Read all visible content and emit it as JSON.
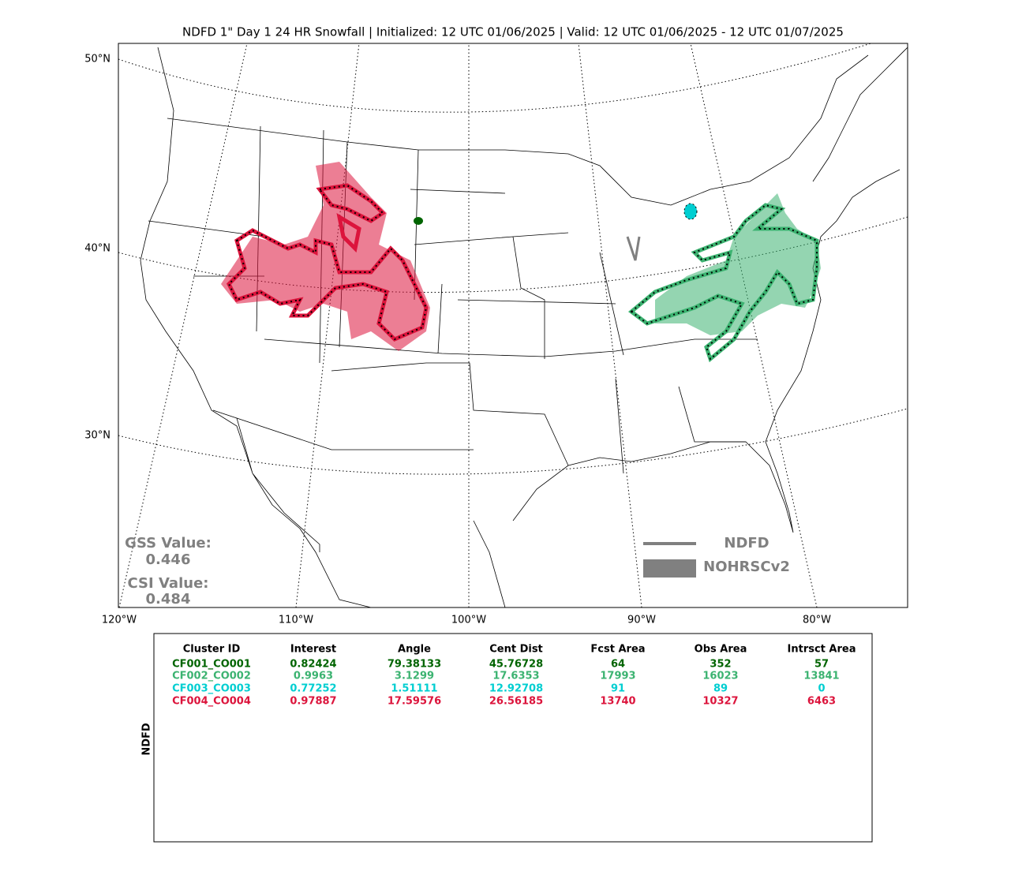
{
  "title": "NDFD 1\" Day 1 24 HR Snowfall | Initialized: 12 UTC 01/06/2025 | Valid: 12 UTC 01/06/2025 - 12 UTC 01/07/2025",
  "map": {
    "lat_labels": [
      "50°N",
      "40°N",
      "30°N"
    ],
    "lon_labels": [
      "120°W",
      "110°W",
      "100°W",
      "90°W",
      "80°W"
    ]
  },
  "scores": {
    "gss_label": "GSS Value:",
    "gss": 0.446,
    "csi_label": "CSI Value:",
    "csi": 0.484
  },
  "legend": {
    "forecast": "NDFD",
    "observed": "NOHRSCv2"
  },
  "table": {
    "side_label": "NDFD",
    "columns": [
      "Cluster ID",
      "Interest",
      "Angle",
      "Cent Dist",
      "Fcst Area",
      "Obs Area",
      "Intrsct Area"
    ],
    "row_colors": [
      "#006400",
      "#3cb371",
      "#00ced1",
      "#dc143c"
    ],
    "rows": [
      [
        "CF001_CO001",
        0.82424,
        79.38133,
        45.76728,
        64,
        352,
        57
      ],
      [
        "CF002_CO002",
        0.9963,
        3.1299,
        17.6353,
        17993,
        16023,
        13841
      ],
      [
        "CF003_CO003",
        0.77252,
        1.51111,
        12.92708,
        91,
        89,
        0
      ],
      [
        "CF004_CO004",
        0.97887,
        17.59576,
        26.56185,
        13740,
        10327,
        6463
      ]
    ]
  }
}
